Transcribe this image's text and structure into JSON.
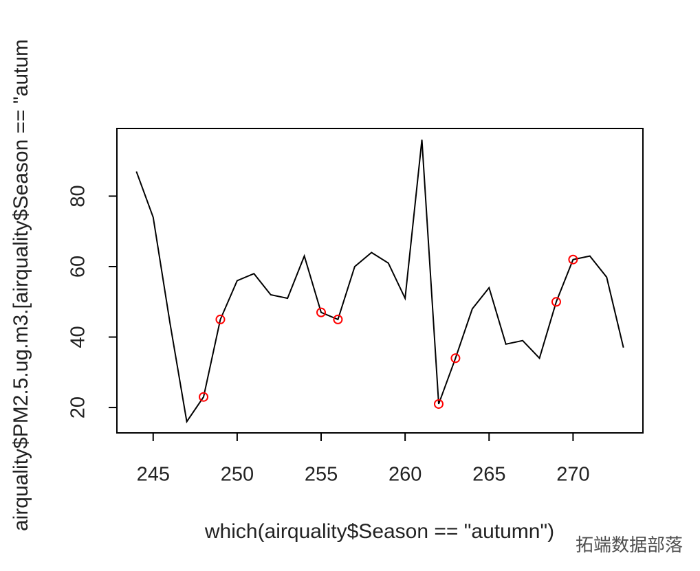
{
  "chart_data": {
    "type": "line",
    "xlabel": "which(airquality$Season == \"autumn\")",
    "ylabel": "airquality$PM2.5.ug.m3.[airquality$Season == \"autum",
    "xlim": [
      242.84,
      274.16
    ],
    "ylim": [
      12.8,
      99.2
    ],
    "xticks": [
      245,
      250,
      255,
      260,
      265,
      270
    ],
    "yticks": [
      20,
      40,
      60,
      80
    ],
    "series": [
      {
        "type": "line",
        "color": "#000000",
        "x": [
          244,
          245,
          246,
          247,
          248,
          249,
          250,
          251,
          252,
          253,
          254,
          255,
          256,
          257,
          258,
          259,
          260,
          261,
          262,
          263,
          264,
          265,
          266,
          267,
          268,
          269,
          270,
          271,
          272,
          273
        ],
        "values": [
          87,
          74,
          44,
          16,
          23,
          45,
          56,
          58,
          52,
          51,
          63,
          47,
          45,
          60,
          64,
          61,
          51,
          96,
          21,
          34,
          48,
          54,
          38,
          39,
          34,
          50,
          62,
          63,
          57,
          37
        ]
      },
      {
        "type": "scatter",
        "color": "#ff0000",
        "x": [
          248,
          249,
          255,
          256,
          262,
          263,
          269,
          270
        ],
        "values": [
          23,
          45,
          47,
          45,
          21,
          34,
          50,
          62
        ]
      }
    ],
    "watermark": "拓端数据部落"
  }
}
